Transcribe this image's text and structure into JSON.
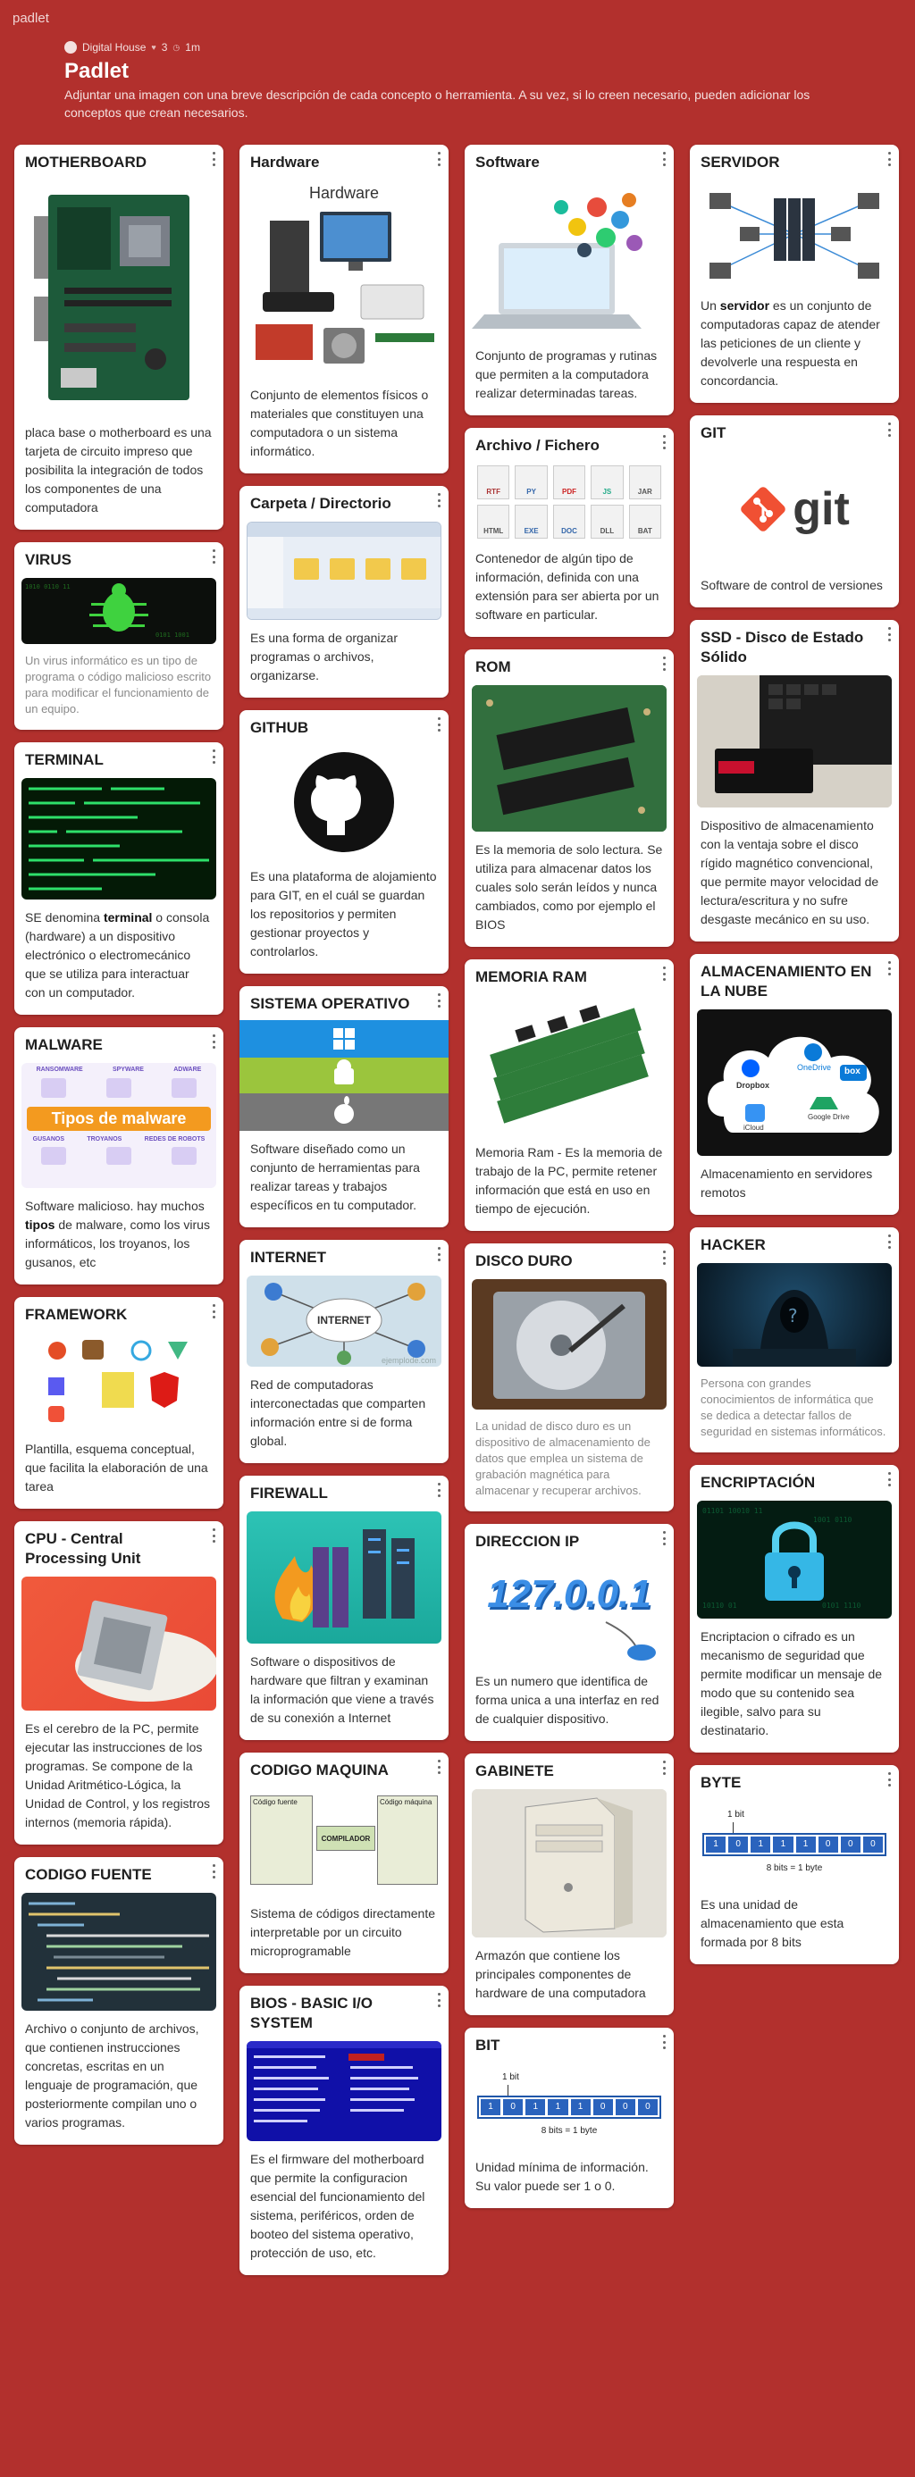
{
  "brand": "padlet",
  "header": {
    "author": "Digital House",
    "likes": "3",
    "time": "1m",
    "title": "Padlet",
    "description": "Adjuntar una imagen con una breve descripción de cada concepto o herramienta. A su vez, si lo creen necesario, pueden adicionar los conceptos que crean necesarios."
  },
  "cards": {
    "motherboard": {
      "title": "MOTHERBOARD",
      "body": "placa base o motherboard es una tarjeta de circuito impreso que posibilita la integración de todos los componentes de una computadora"
    },
    "virus": {
      "title": "VIRUS",
      "body": "Un virus informático es un tipo de programa o código malicioso escrito para modificar el funcionamiento de un equipo."
    },
    "terminal": {
      "title": "TERMINAL",
      "pre": "SE denomina ",
      "bold": "terminal",
      "post": " o consola (hardware) a un dispositivo electrónico o electromecánico que se utiliza para interactuar con un computador."
    },
    "malware": {
      "title": "MALWARE",
      "banner": "Tipos de malware",
      "pre": "Software malicioso. hay muchos ",
      "bold": "tipos",
      "post": " de malware, como los virus informáticos, los troyanos, los gusanos, etc",
      "labels": [
        "RANSOMWARE",
        "SPYWARE",
        "ADWARE",
        "GUSANOS",
        "TROYANOS",
        "REDES DE ROBOTS"
      ]
    },
    "framework": {
      "title": "FRAMEWORK",
      "body": "Plantilla, esquema conceptual, que facilita la elaboración de una tarea"
    },
    "cpu": {
      "title": "CPU - Central Processing Unit",
      "body": "Es el cerebro de la PC, permite ejecutar las instrucciones de los programas. Se compone de la Unidad Aritmético-Lógica, la Unidad de Control, y los registros internos (memoria rápida)."
    },
    "codigo_fuente": {
      "title": "CODIGO FUENTE",
      "body": "Archivo o conjunto de archivos, que contienen instrucciones concretas, escritas en un lenguaje de programación, que posteriormente compilan uno o varios programas."
    },
    "hardware": {
      "title": "Hardware",
      "art_label": "Hardware",
      "body": "Conjunto de elementos físicos o materiales que constituyen una computadora o un sistema informático."
    },
    "carpeta": {
      "title": "Carpeta / Directorio",
      "body": "Es una forma de organizar programas o archivos, organizarse."
    },
    "github": {
      "title": "GITHUB",
      "body": "Es una plataforma de alojamiento para GIT, en el cuál se guardan los repositorios y permiten gestionar proyectos y controlarlos."
    },
    "so": {
      "title": "SISTEMA OPERATIVO",
      "body": "Software diseñado como un conjunto de herramientas para realizar tareas y trabajos específicos en tu computador."
    },
    "internet": {
      "title": "INTERNET",
      "art_label": "INTERNET",
      "watermark": "ejemplode.com",
      "body": "Red de computadoras interconectadas que comparten información entre si de forma global."
    },
    "firewall": {
      "title": "FIREWALL",
      "body": "Software o dispositivos de hardware que filtran y examinan la información que viene a través de su conexión a Internet"
    },
    "codigo_maquina": {
      "title": "CODIGO MAQUINA",
      "src_label": "Código fuente",
      "mid_label": "COMPILADOR",
      "dst_label": "Código máquina",
      "body": "Sistema de códigos directamente interpretable por un circuito microprogramable"
    },
    "bios": {
      "title": "BIOS - BASIC I/O SYSTEM",
      "body": "Es el firmware del motherboard que permite la configuracion esencial del funcionamiento del sistema, periféricos, orden de booteo del sistema operativo, protección de uso, etc."
    },
    "software": {
      "title": "Software",
      "body": "Conjunto de programas y rutinas que permiten a la computadora realizar determinadas tareas."
    },
    "archivo": {
      "title": "Archivo / Fichero",
      "body": "Contenedor de algún tipo de información, definida con una extensión para ser abierta por un software en particular.",
      "ext": [
        "RTF",
        "PY",
        "PDF",
        "JS",
        "JAR",
        "HTML",
        "EXE",
        "DOC",
        "DLL",
        "BAT"
      ]
    },
    "rom": {
      "title": "ROM",
      "body": "Es la memoria de solo lectura. Se utiliza para almacenar datos los cuales solo serán leídos y nunca cambiados, como por ejemplo el BIOS"
    },
    "ram": {
      "title": "MEMORIA RAM",
      "body": "Memoria Ram - Es la memoria de trabajo de la PC, permite retener información que está en uso en tiempo de ejecución."
    },
    "disco": {
      "title": "DISCO DURO",
      "body": "La unidad de disco duro es un dispositivo de almacenamiento de datos que emplea un sistema de grabación magnética para almacenar y recuperar archivos."
    },
    "ip": {
      "title": "DIRECCION IP",
      "art_label": "127.0.0.1",
      "body": "Es un numero que identifica de forma unica a una interfaz en red de cualquier dispositivo."
    },
    "gabinete": {
      "title": "GABINETE",
      "body": "Armazón que contiene los principales componentes de hardware de una computadora"
    },
    "bit": {
      "title": "BIT",
      "top": "1 bit",
      "bottom": "8 bits = 1 byte",
      "bits": [
        "1",
        "0",
        "1",
        "1",
        "1",
        "0",
        "0",
        "0"
      ],
      "body": "Unidad mínima de información. Su valor puede ser 1 o 0."
    },
    "servidor": {
      "title": "SERVIDOR",
      "pre": "Un ",
      "bold": "servidor",
      "post": " es un conjunto de computadoras capaz de atender las peticiones de un cliente y devolverle una respuesta en concordancia."
    },
    "git": {
      "title": "GIT",
      "art_label": "git",
      "body": "Software de control de versiones"
    },
    "ssd": {
      "title": "SSD - Disco de Estado Sólido",
      "body": "Dispositivo de almacenamiento con la ventaja sobre el disco rígido magnético convencional, que permite mayor velocidad de lectura/escritura y no sufre desgaste mecánico en su uso."
    },
    "nube": {
      "title": "ALMACENAMIENTO EN LA NUBE",
      "body": "Almacenamiento en servidores remotos",
      "labels": [
        "Dropbox",
        "OneDrive",
        "box",
        "iCloud",
        "Google Drive"
      ]
    },
    "hacker": {
      "title": "HACKER",
      "body": "Persona con grandes conocimientos de informática que se dedica a detectar fallos de seguridad en sistemas informáticos."
    },
    "encriptacion": {
      "title": "ENCRIPTACIÓN",
      "body": "Encriptacion o cifrado es un mecanismo de seguridad que permite modificar un mensaje de modo que su contenido sea ilegible, salvo para su destinatario."
    },
    "byte": {
      "title": "BYTE",
      "top": "1 bit",
      "bottom": "8 bits = 1 byte",
      "bits": [
        "1",
        "0",
        "1",
        "1",
        "1",
        "0",
        "0",
        "0"
      ],
      "body": "Es una unidad de almacenamiento que esta formada por 8 bits"
    }
  }
}
